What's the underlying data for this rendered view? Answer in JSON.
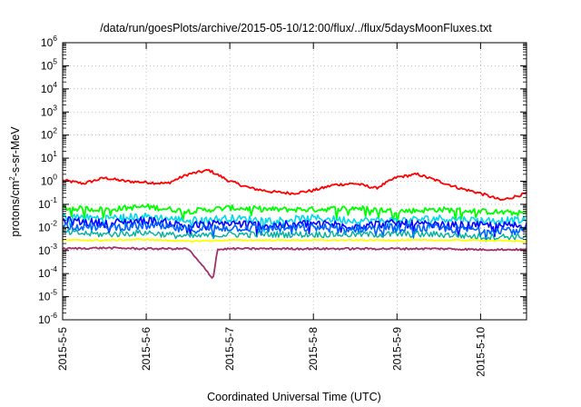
{
  "chart_data": {
    "type": "line",
    "title": "/data/run/goesPlots/archive/2015-05-10/12:00/flux/../flux/5daysMoonFluxes.txt",
    "xlabel": "Coordinated Universal Time (UTC)",
    "ylabel_parts": [
      "protons/cm",
      "2",
      "-s-sr-MeV"
    ],
    "x_ticks": [
      "2015-5-5",
      "2015-5-6",
      "2015-5-7",
      "2015-5-8",
      "2015-5-9",
      "2015-5-10"
    ],
    "xlim_days": [
      0,
      5.55
    ],
    "y_scale": "log",
    "y_tick_exponents": [
      -6,
      -5,
      -4,
      -3,
      -2,
      -1,
      0,
      1,
      2,
      3,
      4,
      5,
      6
    ],
    "ylim_exponents": [
      -6,
      6
    ],
    "grid": true,
    "colors": {
      "red": "#ff0000",
      "green": "#00ff00",
      "cyan": "#00d8e8",
      "blue": "#0000ff",
      "blue2": "#0060ff",
      "teal": "#00b0a0",
      "yellow": "#ffff00",
      "purple": "#a0306a"
    },
    "series": [
      {
        "color_key": "red",
        "x": [
          0,
          0.25,
          0.5,
          0.75,
          1.0,
          1.25,
          1.5,
          1.75,
          2.0,
          2.25,
          2.5,
          2.75,
          3.0,
          3.25,
          3.5,
          3.75,
          4.0,
          4.25,
          4.5,
          4.75,
          5.0,
          5.25,
          5.55
        ],
        "y": [
          1.1,
          0.8,
          1.4,
          1.0,
          0.9,
          0.8,
          2.0,
          3.0,
          1.0,
          0.5,
          0.35,
          0.3,
          0.4,
          0.7,
          0.8,
          0.5,
          1.5,
          2.0,
          1.0,
          0.5,
          0.3,
          0.15,
          0.3
        ]
      },
      {
        "color_key": "green",
        "x": [
          0,
          0.5,
          1.0,
          1.5,
          2.0,
          2.5,
          3.0,
          3.5,
          4.0,
          4.5,
          5.0,
          5.55
        ],
        "y": [
          0.07,
          0.06,
          0.08,
          0.05,
          0.07,
          0.06,
          0.06,
          0.07,
          0.05,
          0.06,
          0.05,
          0.04
        ]
      },
      {
        "color_key": "cyan",
        "x": [
          0,
          0.5,
          1.0,
          1.5,
          2.0,
          2.5,
          3.0,
          3.5,
          4.0,
          4.5,
          5.0,
          5.55
        ],
        "y": [
          0.03,
          0.025,
          0.03,
          0.02,
          0.025,
          0.02,
          0.025,
          0.02,
          0.02,
          0.025,
          0.02,
          0.02
        ]
      },
      {
        "color_key": "blue",
        "x": [
          0,
          0.5,
          1.0,
          1.5,
          2.0,
          2.5,
          3.0,
          3.5,
          4.0,
          4.5,
          5.0,
          5.55
        ],
        "y": [
          0.02,
          0.015,
          0.02,
          0.012,
          0.015,
          0.012,
          0.015,
          0.012,
          0.015,
          0.012,
          0.012,
          0.012
        ]
      },
      {
        "color_key": "blue2",
        "x": [
          0,
          0.5,
          1.0,
          1.5,
          2.0,
          2.5,
          3.0,
          3.5,
          4.0,
          4.5,
          5.0,
          5.55
        ],
        "y": [
          0.012,
          0.01,
          0.012,
          0.008,
          0.01,
          0.009,
          0.01,
          0.009,
          0.01,
          0.009,
          0.008,
          0.008
        ]
      },
      {
        "color_key": "teal",
        "x": [
          0,
          0.5,
          1.0,
          1.5,
          2.0,
          2.5,
          3.0,
          3.5,
          4.0,
          4.5,
          5.0,
          5.55
        ],
        "y": [
          0.006,
          0.005,
          0.006,
          0.004,
          0.005,
          0.005,
          0.005,
          0.005,
          0.005,
          0.005,
          0.004,
          0.004
        ]
      },
      {
        "color_key": "yellow",
        "x": [
          0,
          0.5,
          1.0,
          1.5,
          2.0,
          2.5,
          3.0,
          3.5,
          4.0,
          4.5,
          5.0,
          5.55
        ],
        "y": [
          0.0028,
          0.0028,
          0.003,
          0.0025,
          0.0028,
          0.0028,
          0.0028,
          0.0028,
          0.0028,
          0.0028,
          0.0028,
          0.0025
        ]
      },
      {
        "color_key": "purple",
        "x": [
          0,
          0.5,
          1.0,
          1.5,
          1.8,
          1.85,
          2.0,
          2.5,
          3.0,
          3.5,
          4.0,
          4.5,
          5.0,
          5.55
        ],
        "y": [
          0.0012,
          0.0013,
          0.0012,
          0.0012,
          6e-05,
          0.0011,
          0.0012,
          0.0012,
          0.0012,
          0.0012,
          0.0012,
          0.0012,
          0.0011,
          0.0011
        ]
      }
    ]
  }
}
